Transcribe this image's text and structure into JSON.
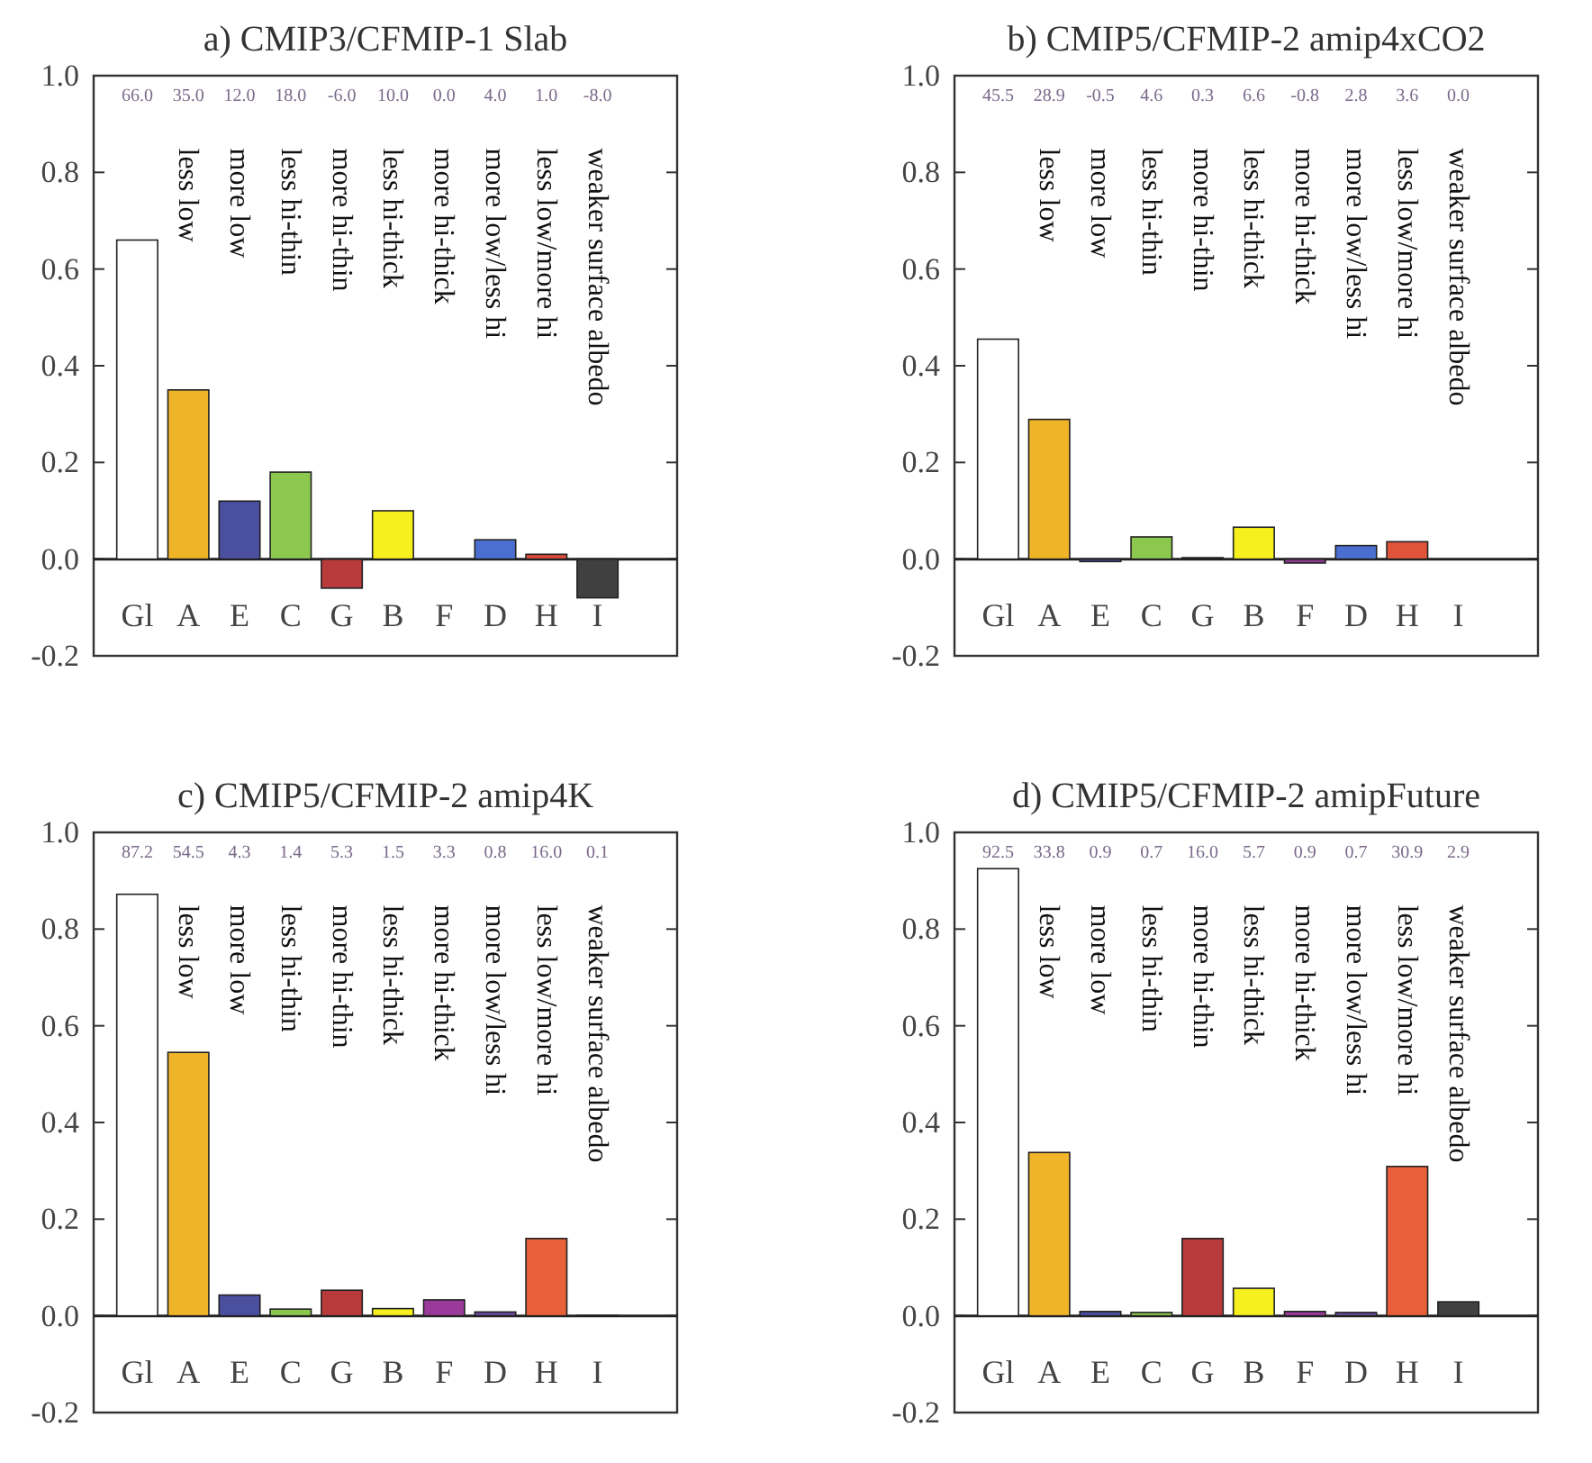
{
  "chart_data": [
    {
      "type": "bar",
      "title": "a) CMIP3/CFMIP-1 Slab",
      "categories": [
        "Gl",
        "A",
        "E",
        "C",
        "G",
        "B",
        "F",
        "D",
        "H",
        "I"
      ],
      "values": [
        0.66,
        0.35,
        0.12,
        0.18,
        -0.06,
        0.1,
        0.0,
        0.04,
        0.01,
        -0.08
      ],
      "colors": [
        "#ffffff",
        "#f0b428",
        "#4a4f9e",
        "#8cc84e",
        "#b83a3a",
        "#f5f01e",
        "#8a3a8a",
        "#4a6fd0",
        "#d84a3a",
        "#404040"
      ],
      "ylim": [
        -0.2,
        1.0
      ],
      "yticks": [
        {
          "value": -0.2,
          "label": "-0.2"
        },
        {
          "value": 0,
          "label": "0.0"
        },
        {
          "value": 0.2,
          "label": "0.2"
        },
        {
          "value": 0.4,
          "label": "0.4"
        },
        {
          "value": 0.6,
          "label": "0.6"
        },
        {
          "value": 0.8,
          "label": "0.8"
        },
        {
          "value": 1.0,
          "label": "1.0"
        }
      ],
      "annotations": [
        "66.0 35.0 12.0 18.0 -6.0 10.0 0.0 4.0 1.0 -8.0",
        "less low",
        "more low",
        "less hi-thin",
        "more hi-thin",
        "less hi-thick",
        "more hi-thick",
        "more low/less hi",
        "less low/more hi",
        "weaker surface albedo"
      ]
    },
    {
      "type": "bar",
      "title": "b) CMIP5/CFMIP-2 amip4xCO2",
      "categories": [
        "Gl",
        "A",
        "E",
        "C",
        "G",
        "B",
        "F",
        "D",
        "H",
        "I"
      ],
      "values": [
        0.455,
        0.289,
        -0.005,
        0.046,
        0.003,
        0.066,
        -0.008,
        0.028,
        0.036,
        0.0
      ],
      "colors": [
        "#ffffff",
        "#f0b428",
        "#4a4f9e",
        "#8cc84e",
        "#b83a3a",
        "#f5f01e",
        "#8a3a8a",
        "#4a6fd0",
        "#e0553a",
        "#404040"
      ],
      "ylim": [
        -0.2,
        1.0
      ],
      "yticks": [
        {
          "value": -0.2,
          "label": "-0.2"
        },
        {
          "value": 0,
          "label": "0.0"
        },
        {
          "value": 0.2,
          "label": "0.2"
        },
        {
          "value": 0.4,
          "label": "0.4"
        },
        {
          "value": 0.6,
          "label": "0.6"
        },
        {
          "value": 0.8,
          "label": "0.8"
        },
        {
          "value": 1.0,
          "label": "1.0"
        }
      ],
      "annotations": [
        "45.5 28.9 -0.5 4.6 0.3 6.6 -0.8 2.8 3.6 0.0",
        "less low",
        "more low",
        "less hi-thin",
        "more hi-thin",
        "less hi-thick",
        "more hi-thick",
        "more low/less hi",
        "less low/more hi",
        "weaker surface albedo"
      ]
    },
    {
      "type": "bar",
      "title": "c) CMIP5/CFMIP-2 amip4K",
      "categories": [
        "Gl",
        "A",
        "E",
        "C",
        "G",
        "B",
        "F",
        "D",
        "H",
        "I"
      ],
      "values": [
        0.872,
        0.545,
        0.043,
        0.014,
        0.053,
        0.015,
        0.033,
        0.008,
        0.16,
        0.001
      ],
      "colors": [
        "#ffffff",
        "#f0b428",
        "#4a4f9e",
        "#8cc84e",
        "#b83a3a",
        "#f5f01e",
        "#9a3a9a",
        "#6a4aa0",
        "#e8603a",
        "#404040"
      ],
      "ylim": [
        -0.2,
        1.0
      ],
      "yticks": [
        {
          "value": -0.2,
          "label": "-0.2"
        },
        {
          "value": 0,
          "label": "0.0"
        },
        {
          "value": 0.2,
          "label": "0.2"
        },
        {
          "value": 0.4,
          "label": "0.4"
        },
        {
          "value": 0.6,
          "label": "0.6"
        },
        {
          "value": 0.8,
          "label": "0.8"
        },
        {
          "value": 1.0,
          "label": "1.0"
        }
      ],
      "annotations": [
        "87.2 54.5 4.3 1.4 5.3 1.5 3.3 0.8 16.0 0.1",
        "less low",
        "more low",
        "less hi-thin",
        "more hi-thin",
        "less hi-thick",
        "more hi-thick",
        "more low/less hi",
        "less low/more hi",
        "weaker surface albedo"
      ]
    },
    {
      "type": "bar",
      "title": "d) CMIP5/CFMIP-2 amipFuture",
      "categories": [
        "Gl",
        "A",
        "E",
        "C",
        "G",
        "B",
        "F",
        "D",
        "H",
        "I"
      ],
      "values": [
        0.925,
        0.338,
        0.009,
        0.007,
        0.16,
        0.057,
        0.009,
        0.007,
        0.309,
        0.029
      ],
      "colors": [
        "#ffffff",
        "#f0b428",
        "#4a4f9e",
        "#8cc84e",
        "#b83a3a",
        "#f5f01e",
        "#9a3a9a",
        "#6a4aa0",
        "#e8603a",
        "#404040"
      ],
      "ylim": [
        -0.2,
        1.0
      ],
      "yticks": [
        {
          "value": -0.2,
          "label": "-0.2"
        },
        {
          "value": 0,
          "label": "0.0"
        },
        {
          "value": 0.2,
          "label": "0.2"
        },
        {
          "value": 0.4,
          "label": "0.4"
        },
        {
          "value": 0.6,
          "label": "0.6"
        },
        {
          "value": 0.8,
          "label": "0.8"
        },
        {
          "value": 1.0,
          "label": "1.0"
        }
      ],
      "annotations": [
        "92.5 33.8 0.9 0.7 16.0 5.7 0.9 0.7 30.9 2.9",
        "less low",
        "more low",
        "less hi-thin",
        "more hi-thin",
        "less hi-thick",
        "more hi-thick",
        "more low/less hi",
        "less low/more hi",
        "weaker surface albedo"
      ]
    }
  ]
}
